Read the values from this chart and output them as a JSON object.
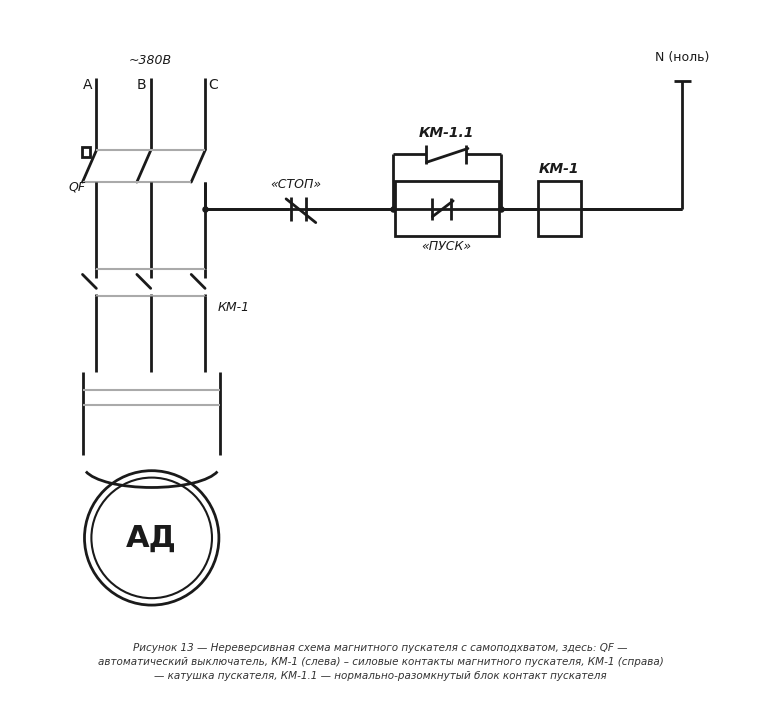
{
  "bg_color": "#ffffff",
  "lc": "#1a1a1a",
  "gc": "#aaaaaa",
  "lw": 2.0,
  "lw_gray": 1.5,
  "caption_line1": "Рисунок 13 — Нереверсивная схема магнитного пускателя с самоподхватом, здесь: QF —",
  "caption_line2": "автоматический выключатель, КМ-1 (слева) – силовые контакты магнитного пускателя, КМ-1 (справа)",
  "caption_line3": "— катушка пускателя, КМ-1.1 — нормально-разомкнутый блок контакт пускателя"
}
